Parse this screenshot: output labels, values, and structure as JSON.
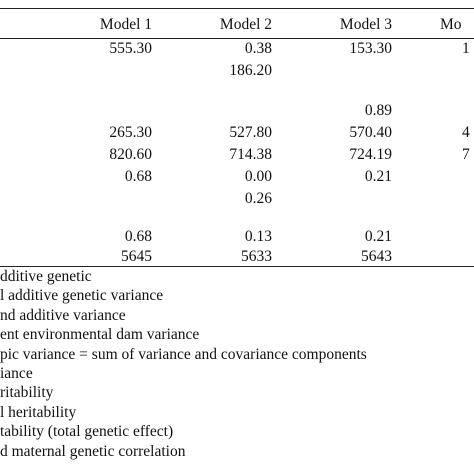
{
  "table": {
    "headers": [
      "Model 1",
      "Model 2",
      "Model 3",
      "Mo"
    ],
    "rows": [
      [
        "555.30",
        "0.38",
        "153.30",
        "1"
      ],
      [
        "",
        "186.20",
        "",
        ""
      ],
      [
        "",
        "",
        "",
        ""
      ],
      [
        "",
        "",
        "0.89",
        ""
      ],
      [
        "265.30",
        "527.80",
        "570.40",
        "4"
      ],
      [
        "820.60",
        "714.38",
        "724.19",
        "7"
      ],
      [
        "0.68",
        "0.00",
        "0.21",
        ""
      ],
      [
        "",
        "0.26",
        "",
        ""
      ],
      [
        "",
        "",
        "",
        ""
      ],
      [
        "0.68",
        "0.13",
        "0.21",
        ""
      ],
      [
        "5645",
        "5633",
        "5643",
        ""
      ]
    ]
  },
  "footnotes": [
    "dditive genetic",
    "l additive genetic variance",
    "nd additive variance",
    "ent environmental dam variance",
    "pic variance = sum of variance and covariance components",
    "iance",
    "ritability",
    "l heritability",
    "tability (total genetic effect)",
    "d maternal genetic correlation"
  ]
}
